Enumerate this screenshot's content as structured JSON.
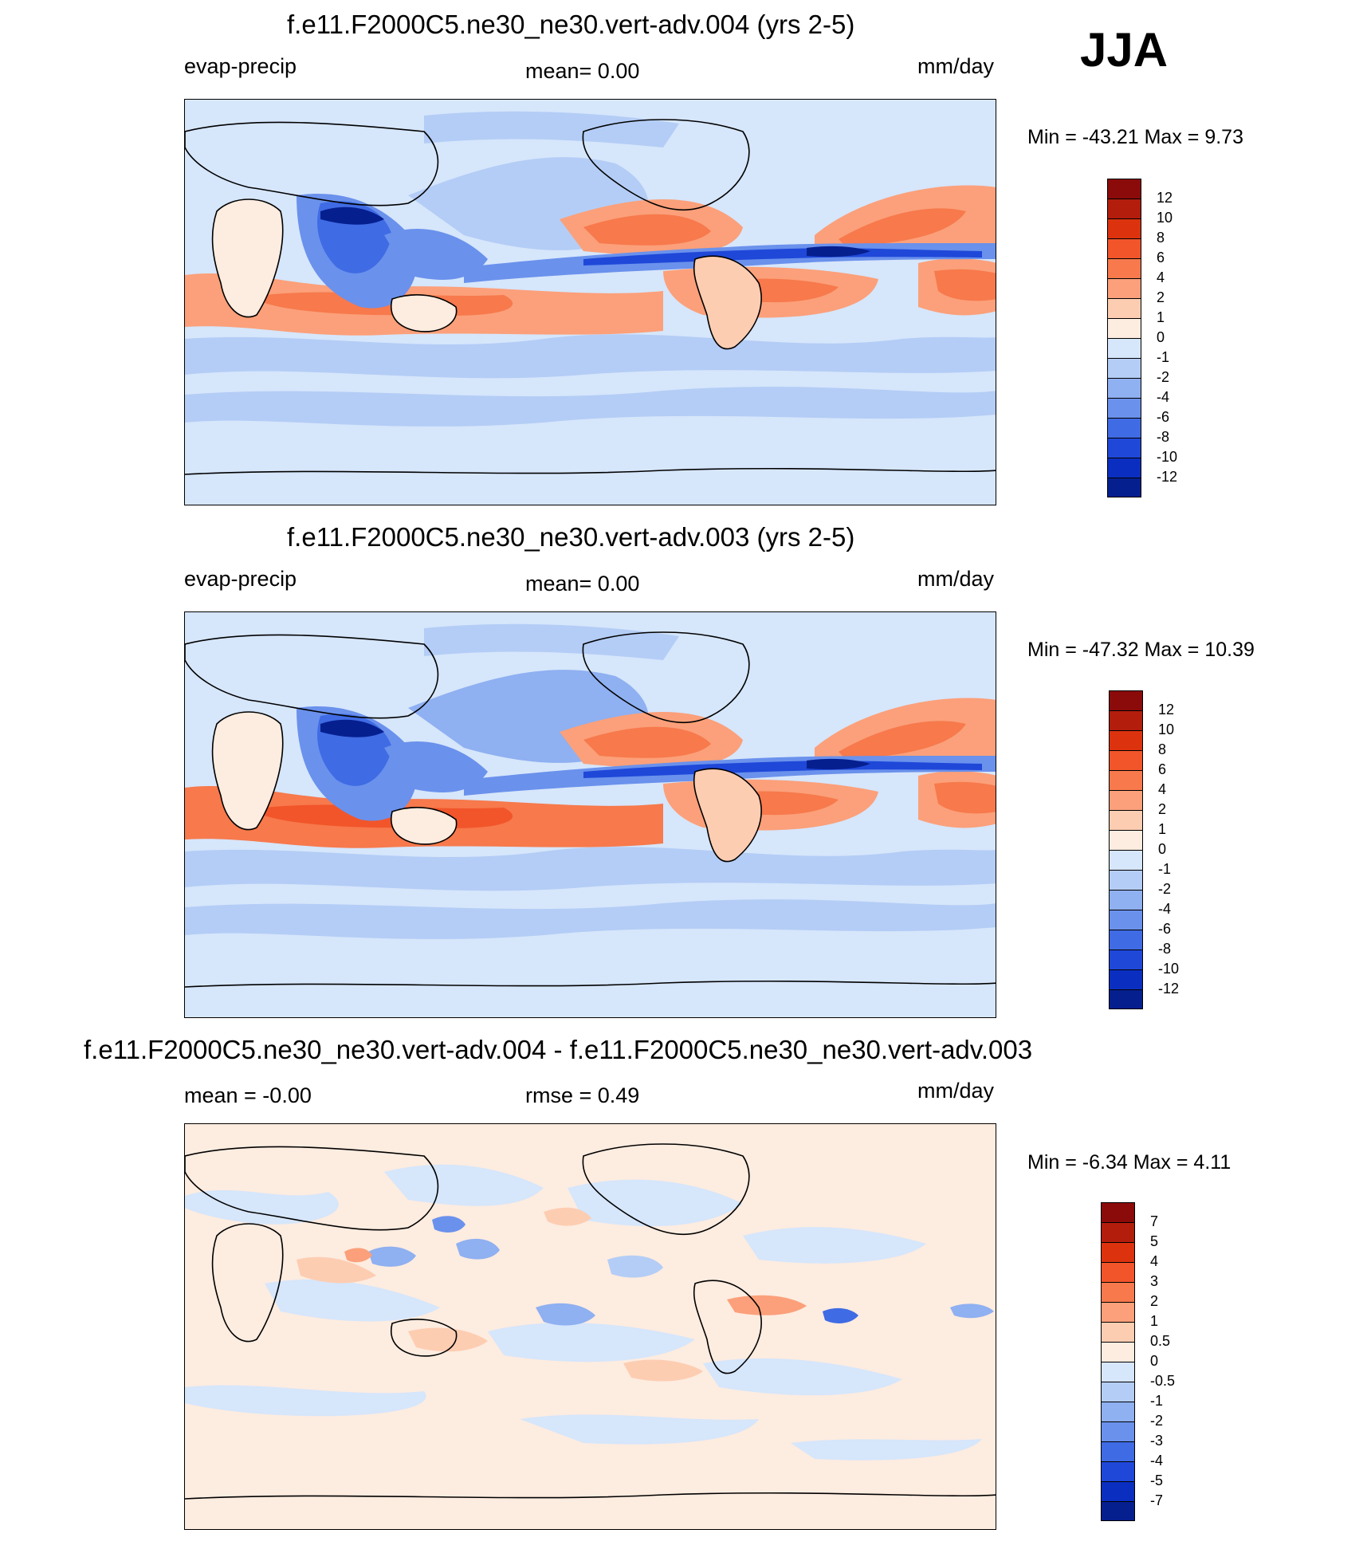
{
  "season": "JJA",
  "panels": [
    {
      "title": "f.e11.F2000C5.ne30_ne30.vert-adv.004 (yrs 2-5)",
      "left_label": "evap-precip",
      "center_label": "mean=   0.00",
      "right_label": "mm/day",
      "minmax": "Min = -43.21 Max =   9.73"
    },
    {
      "title": "f.e11.F2000C5.ne30_ne30.vert-adv.003 (yrs 2-5)",
      "left_label": "evap-precip",
      "center_label": "mean=   0.00",
      "right_label": "mm/day",
      "minmax": "Min = -47.32 Max =  10.39"
    },
    {
      "title": "f.e11.F2000C5.ne30_ne30.vert-adv.004 - f.e11.F2000C5.ne30_ne30.vert-adv.003",
      "left_label": "mean =  -0.00",
      "center_label": "rmse =   0.49",
      "right_label": "mm/day",
      "minmax": "Min =  -6.34 Max =   4.11"
    }
  ],
  "chart_data": [
    {
      "type": "heatmap",
      "title": "f.e11.F2000C5.ne30_ne30.vert-adv.004 (yrs 2-5)",
      "variable": "evap-precip",
      "units": "mm/day",
      "mean": 0.0,
      "min": -43.21,
      "max": 9.73,
      "colorbar_levels": [
        "12",
        "10",
        "8",
        "6",
        "4",
        "2",
        "1",
        "0",
        "-1",
        "-2",
        "-4",
        "-6",
        "-8",
        "-10",
        "-12"
      ],
      "colorbar_colors": [
        "#8b0a0a",
        "#b31d0c",
        "#dc330e",
        "#f2552a",
        "#f7794c",
        "#fba07a",
        "#fdcdb2",
        "#fdece0",
        "#d6e6fb",
        "#b4cdf6",
        "#8fb0f1",
        "#6a91ec",
        "#3f6be4",
        "#1f48d9",
        "#0a2fc0",
        "#061f8f"
      ]
    },
    {
      "type": "heatmap",
      "title": "f.e11.F2000C5.ne30_ne30.vert-adv.003 (yrs 2-5)",
      "variable": "evap-precip",
      "units": "mm/day",
      "mean": 0.0,
      "min": -47.32,
      "max": 10.39,
      "colorbar_levels": [
        "12",
        "10",
        "8",
        "6",
        "4",
        "2",
        "1",
        "0",
        "-1",
        "-2",
        "-4",
        "-6",
        "-8",
        "-10",
        "-12"
      ],
      "colorbar_colors": [
        "#8b0a0a",
        "#b31d0c",
        "#dc330e",
        "#f2552a",
        "#f7794c",
        "#fba07a",
        "#fdcdb2",
        "#fdece0",
        "#d6e6fb",
        "#b4cdf6",
        "#8fb0f1",
        "#6a91ec",
        "#3f6be4",
        "#1f48d9",
        "#0a2fc0",
        "#061f8f"
      ]
    },
    {
      "type": "heatmap",
      "title": "f.e11.F2000C5.ne30_ne30.vert-adv.004 - f.e11.F2000C5.ne30_ne30.vert-adv.003",
      "units": "mm/day",
      "mean": -0.0,
      "rmse": 0.49,
      "min": -6.34,
      "max": 4.11,
      "colorbar_levels": [
        "7",
        "5",
        "4",
        "3",
        "2",
        "1",
        "0.5",
        "0",
        "-0.5",
        "-1",
        "-2",
        "-3",
        "-4",
        "-5",
        "-7"
      ],
      "colorbar_colors": [
        "#8b0a0a",
        "#b31d0c",
        "#dc330e",
        "#f2552a",
        "#f7794c",
        "#fba07a",
        "#fdcdb2",
        "#fdece0",
        "#d6e6fb",
        "#b4cdf6",
        "#8fb0f1",
        "#6a91ec",
        "#3f6be4",
        "#1f48d9",
        "#0a2fc0",
        "#061f8f"
      ]
    }
  ]
}
